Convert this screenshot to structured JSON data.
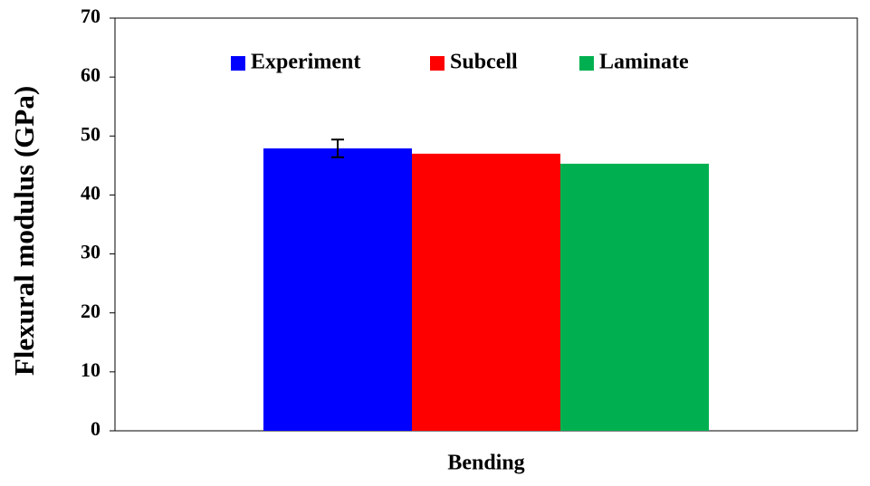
{
  "chart_data": {
    "type": "bar",
    "categories": [
      "Bending"
    ],
    "y_label": "Flexural modulus (GPa)",
    "series": [
      {
        "name": "Experiment",
        "color": "#0000ff",
        "values": [
          47.9
        ],
        "errors": [
          1.5
        ]
      },
      {
        "name": "Subcell",
        "color": "#ff0000",
        "values": [
          47.0
        ]
      },
      {
        "name": "Laminate",
        "color": "#00b050",
        "values": [
          45.3
        ]
      }
    ],
    "ylim": [
      0,
      70
    ],
    "yticks": [
      0,
      10,
      20,
      30,
      40,
      50,
      60,
      70
    ],
    "grid": false,
    "legend": "top"
  }
}
